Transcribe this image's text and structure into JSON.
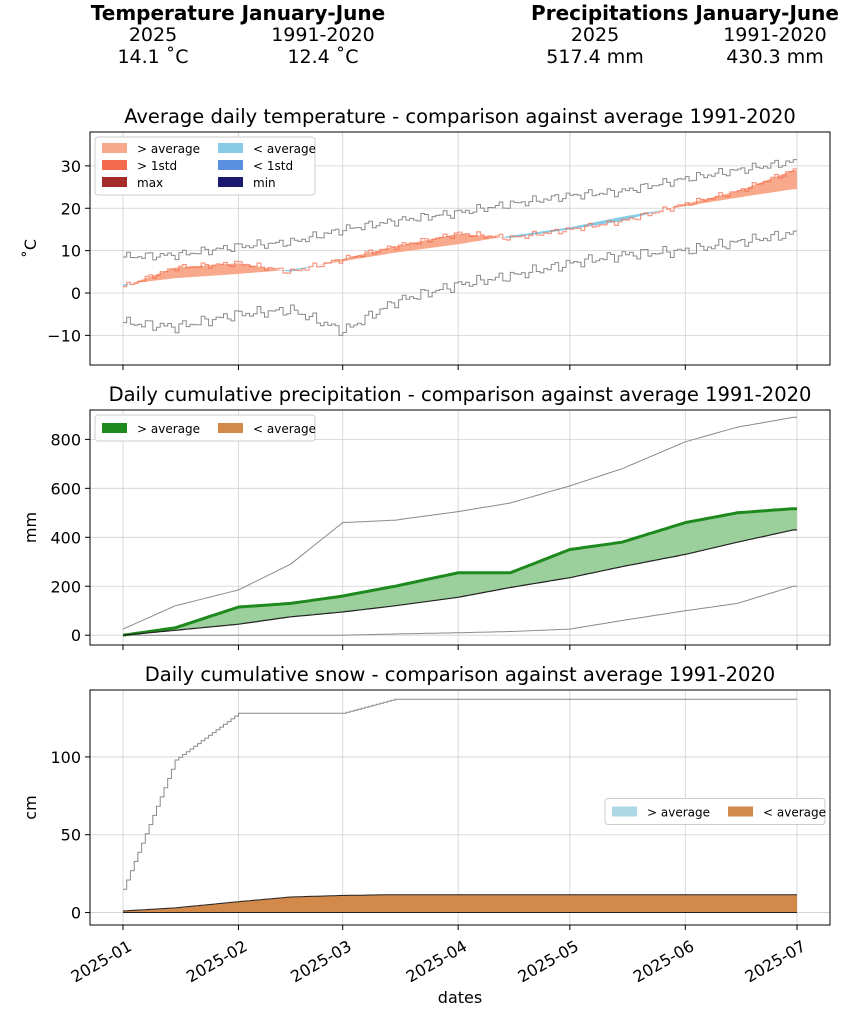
{
  "summary": {
    "temperature": {
      "title": "Temperature January-June",
      "col1_label": "2025",
      "col2_label": "1991-2020",
      "col1_value": "14.1 ˚C",
      "col2_value": "12.4 ˚C"
    },
    "precipitation": {
      "title": "Precipitations January-June",
      "col1_label": "2025",
      "col2_label": "1991-2020",
      "col1_value": "517.4 mm",
      "col2_value": "430.3 mm"
    }
  },
  "colors": {
    "above_avg_temp": "#f9a98b",
    "above_1std_temp": "#f46a4c",
    "max_temp": "#a52a2a",
    "below_avg_temp": "#89cbe6",
    "below_1std_temp": "#5b8fe0",
    "min_temp": "#1a1a6e",
    "above_avg_prec": "#1e8a1e",
    "below_avg_prec": "#d2894a",
    "above_avg_snow": "#add8e6",
    "below_avg_snow": "#d2894a",
    "band_prec": "#9bcf9b",
    "envelope": "#8a8a8a",
    "mean_line": "#222222"
  },
  "x_axis": {
    "label": "dates",
    "ticks": [
      "2025-01",
      "2025-02",
      "2025-03",
      "2025-04",
      "2025-05",
      "2025-06",
      "2025-07"
    ]
  },
  "chart_data": [
    {
      "type": "area",
      "title": "Average daily temperature - comparison against average 1991-2020",
      "ylabel": "˚C",
      "ylim": [
        -17,
        38
      ],
      "yticks": [
        "30",
        "20",
        "10",
        "0",
        "−10"
      ],
      "ytick_values": [
        30,
        20,
        10,
        0,
        -10
      ],
      "grid": true,
      "legend": [
        "> average",
        "< average",
        "> 1std",
        "< 1std",
        "max",
        "min"
      ],
      "legend_position": "top-left",
      "dates": [
        "2025-01-01",
        "2025-01-15",
        "2025-02-01",
        "2025-02-15",
        "2025-03-01",
        "2025-03-15",
        "2025-04-01",
        "2025-04-15",
        "2025-05-01",
        "2025-05-15",
        "2025-06-01",
        "2025-06-15",
        "2025-06-30"
      ],
      "series": [
        {
          "name": "2025",
          "values": [
            1.5,
            6,
            7,
            5,
            8,
            11,
            14,
            13,
            15,
            17,
            21,
            24,
            29
          ]
        },
        {
          "name": "average 1991-2020",
          "values": [
            2,
            3.5,
            4.5,
            5.5,
            7.5,
            9.5,
            11.5,
            13.5,
            15.5,
            18,
            20.5,
            22.5,
            24.5
          ]
        },
        {
          "name": "max",
          "values": [
            8.5,
            9,
            11,
            12,
            15,
            17,
            19,
            21,
            23,
            24,
            27,
            29,
            31
          ]
        },
        {
          "name": "min",
          "values": [
            -7,
            -8,
            -5,
            -4,
            -9,
            -2,
            2,
            4,
            7,
            9,
            10,
            12,
            14
          ]
        }
      ]
    },
    {
      "type": "area",
      "title": "Daily cumulative precipitation - comparison against average 1991-2020",
      "ylabel": "mm",
      "ylim": [
        -40,
        920
      ],
      "yticks": [
        "800",
        "600",
        "400",
        "200",
        "0"
      ],
      "ytick_values": [
        800,
        600,
        400,
        200,
        0
      ],
      "grid": true,
      "legend": [
        "> average",
        "< average"
      ],
      "legend_position": "top-left",
      "dates": [
        "2025-01-01",
        "2025-01-15",
        "2025-02-01",
        "2025-02-15",
        "2025-03-01",
        "2025-03-15",
        "2025-04-01",
        "2025-04-15",
        "2025-05-01",
        "2025-05-15",
        "2025-06-01",
        "2025-06-15",
        "2025-06-30"
      ],
      "series": [
        {
          "name": "2025",
          "values": [
            0,
            30,
            115,
            130,
            160,
            200,
            255,
            255,
            350,
            380,
            460,
            500,
            517
          ]
        },
        {
          "name": "average 1991-2020",
          "values": [
            0,
            20,
            45,
            75,
            95,
            120,
            155,
            195,
            235,
            280,
            330,
            380,
            430
          ]
        },
        {
          "name": "max",
          "values": [
            25,
            120,
            185,
            290,
            460,
            470,
            505,
            540,
            610,
            680,
            790,
            850,
            890
          ]
        },
        {
          "name": "min",
          "values": [
            0,
            0,
            0,
            0,
            0,
            5,
            10,
            15,
            25,
            60,
            100,
            130,
            200
          ]
        }
      ]
    },
    {
      "type": "area",
      "title": "Daily cumulative snow - comparison against average 1991-2020",
      "ylabel": "cm",
      "xlabel": "dates",
      "ylim": [
        -8,
        143
      ],
      "yticks": [
        "100",
        "50",
        "0"
      ],
      "ytick_values": [
        100,
        50,
        0
      ],
      "grid": true,
      "legend": [
        "> average",
        "< average"
      ],
      "legend_position": "center-right",
      "dates": [
        "2025-01-01",
        "2025-01-15",
        "2025-02-01",
        "2025-02-15",
        "2025-03-01",
        "2025-03-15",
        "2025-04-01",
        "2025-04-15",
        "2025-05-01",
        "2025-05-15",
        "2025-06-01",
        "2025-06-15",
        "2025-06-30"
      ],
      "series": [
        {
          "name": "2025",
          "values": [
            0,
            0,
            0,
            0,
            0,
            0,
            0,
            0,
            0,
            0,
            0,
            0,
            0
          ]
        },
        {
          "name": "average 1991-2020",
          "values": [
            1,
            3,
            7,
            10,
            11,
            11.5,
            11.5,
            11.5,
            11.5,
            11.5,
            11.5,
            11.5,
            11.5
          ]
        },
        {
          "name": "max",
          "values": [
            15,
            98,
            128,
            128,
            128,
            137,
            137,
            137,
            137,
            137,
            137,
            137,
            137
          ]
        }
      ]
    }
  ]
}
